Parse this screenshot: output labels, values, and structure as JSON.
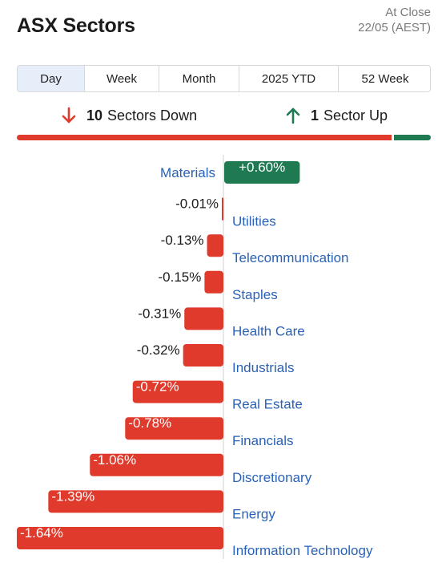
{
  "header": {
    "title": "ASX Sectors",
    "status_line1": "At Close",
    "status_line2": "22/05 (AEST)"
  },
  "tabs": [
    {
      "label": "Day",
      "active": true
    },
    {
      "label": "Week",
      "active": false
    },
    {
      "label": "Month",
      "active": false
    },
    {
      "label": "2025 YTD",
      "active": false
    },
    {
      "label": "52 Week",
      "active": false
    }
  ],
  "summary": {
    "down_count": "10",
    "down_label": "Sectors Down",
    "up_count": "1",
    "up_label": "Sector Up"
  },
  "colors": {
    "negative": "#e03a2c",
    "positive": "#1f7a52",
    "label_link": "#2a62b8",
    "arrow_down": "#e03a2c",
    "arrow_up": "#1f7a52"
  },
  "chart_data": {
    "type": "bar",
    "orientation": "horizontal",
    "categories": [
      "Materials",
      "Utilities",
      "Telecommunication",
      "Staples",
      "Health Care",
      "Industrials",
      "Real Estate",
      "Financials",
      "Discretionary",
      "Energy",
      "Information Technology"
    ],
    "values": [
      0.6,
      -0.01,
      -0.13,
      -0.15,
      -0.31,
      -0.32,
      -0.72,
      -0.78,
      -1.06,
      -1.39,
      -1.64
    ],
    "value_labels": [
      "+0.60%",
      "-0.01%",
      "-0.13%",
      "-0.15%",
      "-0.31%",
      "-0.32%",
      "-0.72%",
      "-0.78%",
      "-1.06%",
      "-1.39%",
      "-1.64%"
    ],
    "xlim": [
      -1.64,
      0.6
    ],
    "grid": false,
    "legend": false
  }
}
